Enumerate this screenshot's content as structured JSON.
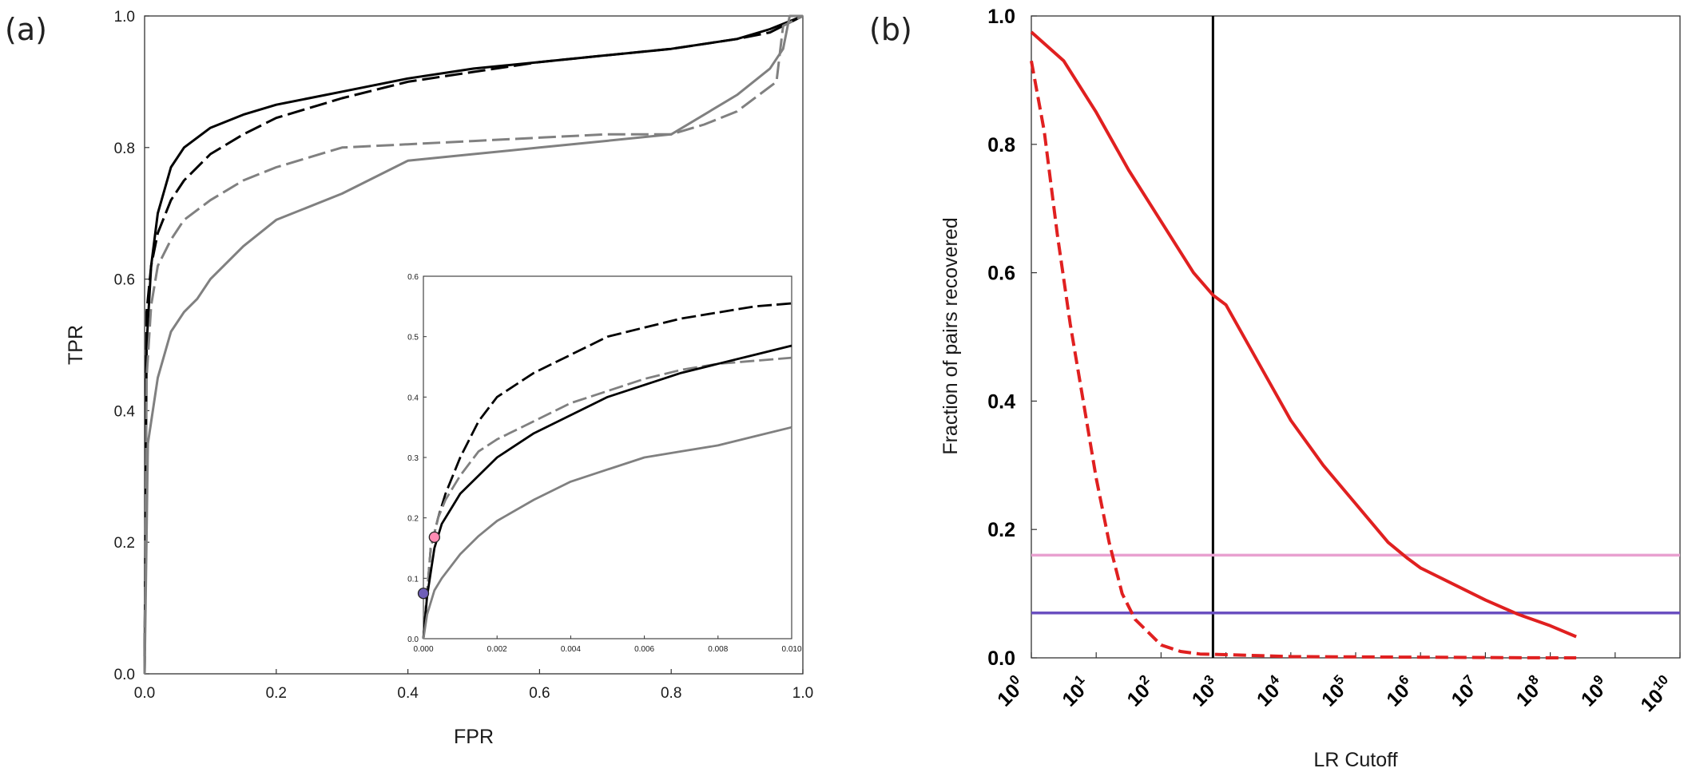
{
  "chart_data": [
    {
      "panel": "(a)",
      "type": "line",
      "xlabel": "FPR",
      "ylabel": "TPR",
      "xlim": [
        0,
        1
      ],
      "ylim": [
        0,
        1
      ],
      "x_ticks": [
        "0.0",
        "0.2",
        "0.4",
        "0.6",
        "0.8",
        "1.0"
      ],
      "y_ticks": [
        "0.0",
        "0.2",
        "0.4",
        "0.6",
        "0.8",
        "1.0"
      ],
      "series": [
        {
          "name": "black solid",
          "color": "#000000",
          "style": "solid",
          "x": [
            0,
            0.003,
            0.01,
            0.02,
            0.04,
            0.06,
            0.1,
            0.15,
            0.2,
            0.3,
            0.4,
            0.5,
            0.6,
            0.7,
            0.8,
            0.9,
            0.95,
            1.0
          ],
          "y": [
            0,
            0.5,
            0.62,
            0.7,
            0.77,
            0.8,
            0.83,
            0.85,
            0.865,
            0.885,
            0.905,
            0.92,
            0.93,
            0.94,
            0.95,
            0.965,
            0.98,
            1.0
          ]
        },
        {
          "name": "black dashed",
          "color": "#000000",
          "style": "dashed",
          "x": [
            0,
            0.003,
            0.01,
            0.02,
            0.04,
            0.06,
            0.1,
            0.15,
            0.2,
            0.3,
            0.4,
            0.5,
            0.6,
            0.7,
            0.8,
            0.9,
            0.95,
            1.0
          ],
          "y": [
            0,
            0.55,
            0.62,
            0.67,
            0.72,
            0.75,
            0.79,
            0.82,
            0.845,
            0.875,
            0.9,
            0.915,
            0.93,
            0.94,
            0.95,
            0.965,
            0.975,
            1.0
          ]
        },
        {
          "name": "gray dashed",
          "color": "#808080",
          "style": "dashed",
          "x": [
            0,
            0.003,
            0.01,
            0.02,
            0.04,
            0.06,
            0.1,
            0.15,
            0.2,
            0.3,
            0.4,
            0.5,
            0.6,
            0.7,
            0.8,
            0.85,
            0.9,
            0.96,
            0.97,
            1.0
          ],
          "y": [
            0,
            0.45,
            0.56,
            0.62,
            0.66,
            0.69,
            0.72,
            0.75,
            0.77,
            0.8,
            0.805,
            0.81,
            0.815,
            0.82,
            0.82,
            0.835,
            0.855,
            0.9,
            0.985,
            1.0
          ]
        },
        {
          "name": "gray solid",
          "color": "#808080",
          "style": "solid",
          "x": [
            0,
            0.005,
            0.02,
            0.04,
            0.06,
            0.08,
            0.1,
            0.15,
            0.2,
            0.3,
            0.4,
            0.5,
            0.6,
            0.7,
            0.8,
            0.9,
            0.95,
            0.97,
            0.98,
            1.0
          ],
          "y": [
            0,
            0.35,
            0.45,
            0.52,
            0.55,
            0.57,
            0.6,
            0.65,
            0.69,
            0.73,
            0.78,
            0.79,
            0.8,
            0.81,
            0.82,
            0.88,
            0.92,
            0.95,
            1.0,
            1.0
          ]
        }
      ],
      "inset": {
        "xlim": [
          0,
          0.01
        ],
        "ylim": [
          0,
          0.6
        ],
        "x_ticks": [
          "0.000",
          "0.002",
          "0.004",
          "0.006",
          "0.008",
          "0.010"
        ],
        "y_ticks": [
          "0.0",
          "0.1",
          "0.2",
          "0.3",
          "0.4",
          "0.5",
          "0.6"
        ],
        "series": [
          {
            "name": "black dashed",
            "color": "#000000",
            "style": "dashed",
            "x": [
              0,
              0.0002,
              0.0004,
              0.0006,
              0.001,
              0.0015,
              0.002,
              0.003,
              0.004,
              0.005,
              0.006,
              0.007,
              0.008,
              0.009,
              0.01
            ],
            "y": [
              0,
              0.15,
              0.2,
              0.24,
              0.3,
              0.36,
              0.4,
              0.44,
              0.47,
              0.5,
              0.515,
              0.53,
              0.54,
              0.55,
              0.555
            ]
          },
          {
            "name": "gray dashed",
            "color": "#808080",
            "style": "dashed",
            "x": [
              0,
              0.0002,
              0.0004,
              0.0006,
              0.001,
              0.0015,
              0.002,
              0.003,
              0.004,
              0.005,
              0.006,
              0.007,
              0.008,
              0.009,
              0.01
            ],
            "y": [
              0,
              0.15,
              0.2,
              0.23,
              0.27,
              0.31,
              0.33,
              0.36,
              0.39,
              0.41,
              0.43,
              0.445,
              0.455,
              0.46,
              0.465
            ]
          },
          {
            "name": "black solid",
            "color": "#000000",
            "style": "solid",
            "x": [
              0,
              0.0001,
              0.0003,
              0.0005,
              0.0008,
              0.001,
              0.0015,
              0.002,
              0.003,
              0.004,
              0.005,
              0.006,
              0.007,
              0.008,
              0.009,
              0.01
            ],
            "y": [
              0,
              0.07,
              0.15,
              0.19,
              0.22,
              0.24,
              0.27,
              0.3,
              0.34,
              0.37,
              0.4,
              0.42,
              0.44,
              0.455,
              0.47,
              0.485
            ]
          },
          {
            "name": "gray solid",
            "color": "#808080",
            "style": "solid",
            "x": [
              0,
              0.0001,
              0.0003,
              0.0005,
              0.001,
              0.0015,
              0.002,
              0.003,
              0.004,
              0.005,
              0.006,
              0.007,
              0.008,
              0.009,
              0.01
            ],
            "y": [
              0,
              0.04,
              0.08,
              0.1,
              0.14,
              0.17,
              0.195,
              0.23,
              0.26,
              0.28,
              0.3,
              0.31,
              0.32,
              0.335,
              0.35
            ]
          }
        ],
        "markers": [
          {
            "name": "pink point",
            "x": 0.0003,
            "y": 0.168,
            "color": "#ff8cb4"
          },
          {
            "name": "purple point",
            "x": 0.0,
            "y": 0.075,
            "color": "#6f5fb8"
          }
        ]
      }
    },
    {
      "panel": "(b)",
      "type": "line",
      "xscale": "log",
      "xlabel": "LR Cutoff",
      "ylabel": "Fraction of pairs recovered",
      "xlim_log10": [
        0,
        10
      ],
      "ylim": [
        0,
        1
      ],
      "x_ticks": [
        "10^0",
        "10^1",
        "10^2",
        "10^3",
        "10^4",
        "10^5",
        "10^6",
        "10^7",
        "10^8",
        "10^9",
        "10^10"
      ],
      "y_ticks": [
        "0.0",
        "0.2",
        "0.4",
        "0.6",
        "0.8",
        "1.0"
      ],
      "series": [
        {
          "name": "red solid",
          "color": "#e02020",
          "style": "solid",
          "x_log10": [
            0,
            0.5,
            1,
            1.5,
            2,
            2.5,
            2.8,
            3,
            3.5,
            4,
            4.5,
            5,
            5.5,
            5.8,
            6,
            7,
            7.5,
            8,
            8.4
          ],
          "y": [
            0.975,
            0.93,
            0.85,
            0.76,
            0.68,
            0.6,
            0.565,
            0.55,
            0.46,
            0.37,
            0.3,
            0.24,
            0.18,
            0.155,
            0.14,
            0.09,
            0.068,
            0.05,
            0.033
          ]
        },
        {
          "name": "red dashed",
          "color": "#e02020",
          "style": "dashed",
          "x_log10": [
            0,
            0.2,
            0.4,
            0.6,
            0.8,
            1,
            1.2,
            1.4,
            1.6,
            1.8,
            2,
            2.3,
            2.6,
            3,
            4,
            6,
            8,
            8.4
          ],
          "y": [
            0.93,
            0.82,
            0.66,
            0.52,
            0.4,
            0.28,
            0.18,
            0.1,
            0.06,
            0.04,
            0.02,
            0.01,
            0.006,
            0.005,
            0.002,
            0.001,
            0.0,
            0.0
          ]
        }
      ],
      "reference_lines": [
        {
          "name": "vertical cutoff",
          "orientation": "vertical",
          "x_log10": 2.8,
          "color": "#000000"
        },
        {
          "name": "pink horizontal",
          "orientation": "horizontal",
          "y": 0.16,
          "color": "#e8a0d0"
        },
        {
          "name": "purple horizontal",
          "orientation": "horizontal",
          "y": 0.07,
          "color": "#6a4fc0"
        }
      ]
    }
  ]
}
